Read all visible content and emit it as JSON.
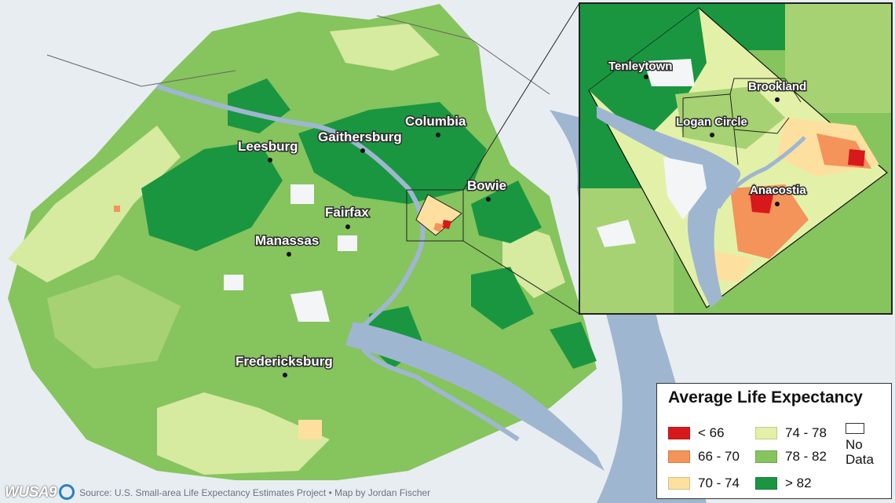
{
  "cities": [
    {
      "name": "Leesburg"
    },
    {
      "name": "Gaithersburg"
    },
    {
      "name": "Columbia"
    },
    {
      "name": "Bowie"
    },
    {
      "name": "Fairfax"
    },
    {
      "name": "Manassas"
    },
    {
      "name": "Fredericksburg"
    }
  ],
  "inset_cities": [
    {
      "name": "Tenleytown"
    },
    {
      "name": "Brookland"
    },
    {
      "name": "Logan Circle"
    },
    {
      "name": "Anacostia"
    }
  ],
  "legend": {
    "title": "Average Life Expectancy",
    "items": [
      {
        "label": "< 66",
        "color": "#d7191c"
      },
      {
        "label": "66 - 70",
        "color": "#f4935a"
      },
      {
        "label": "70 - 74",
        "color": "#fde0a0"
      },
      {
        "label": "74 - 78",
        "color": "#e3f1a8"
      },
      {
        "label": "78 - 82",
        "color": "#86c45e"
      },
      {
        "label": "> 82",
        "color": "#1a9641"
      }
    ],
    "no_data_label": "No Data"
  },
  "footer": {
    "logo": "WUSA9",
    "source": "Source: U.S. Small-area Life Expectancy Estimates Project • Map by Jordan Fischer"
  },
  "colors": {
    "water": "#9fb6d1",
    "background": "#e6ebf0"
  }
}
